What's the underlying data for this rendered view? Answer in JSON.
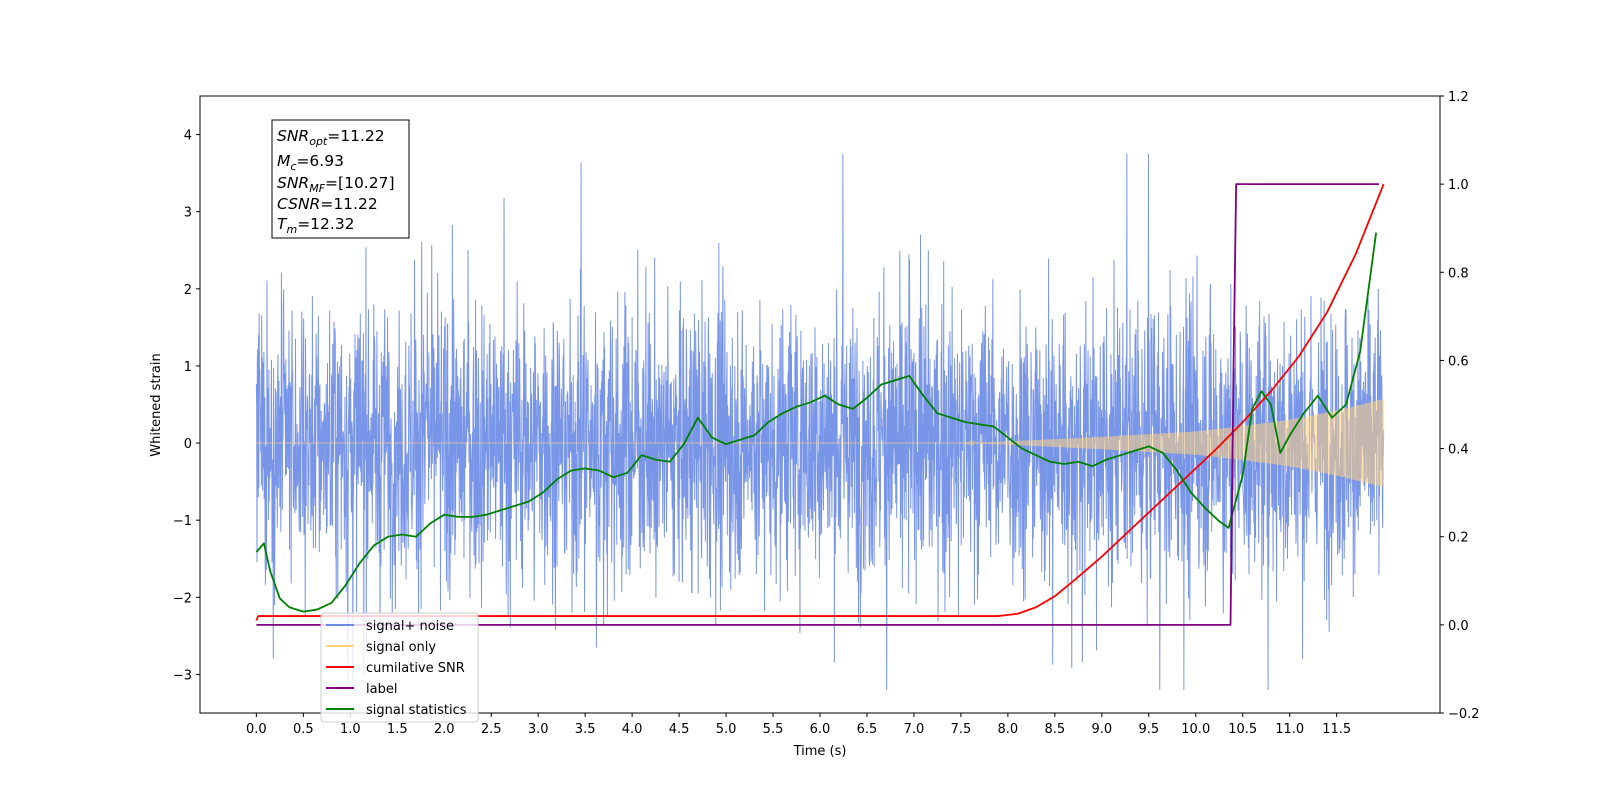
{
  "chart_data": {
    "type": "line",
    "xlabel": "Time (s)",
    "ylabel": "Whitened strain",
    "xlim": [
      -0.6,
      12.6
    ],
    "ylim": [
      -3.5,
      4.5
    ],
    "y2lim": [
      -0.2,
      1.2
    ],
    "x_ticks": [
      "0.0",
      "0.5",
      "1.0",
      "1.5",
      "2.0",
      "2.5",
      "3.0",
      "3.5",
      "4.0",
      "4.5",
      "5.0",
      "5.5",
      "6.0",
      "6.5",
      "7.0",
      "7.5",
      "8.0",
      "8.5",
      "9.0",
      "9.5",
      "10.0",
      "10.5",
      "11.0",
      "11.5"
    ],
    "y_ticks": [
      "−3",
      "−2",
      "−1",
      "0",
      "1",
      "2",
      "3",
      "4"
    ],
    "y2_ticks": [
      "−0.2",
      "0.0",
      "0.2",
      "0.4",
      "0.6",
      "0.8",
      "1.0",
      "1.2"
    ],
    "info_box": {
      "snr_opt": {
        "sym": "SNR",
        "sub": "opt",
        "val": "=11.22"
      },
      "mc": {
        "sym": "M",
        "sub": "c",
        "val": "=6.93"
      },
      "snr_mf": {
        "sym": "SNR",
        "sub": "MF",
        "val": "=[10.27]"
      },
      "csnr": {
        "sym": "CSNR",
        "sub": "",
        "val": "=11.22"
      },
      "tm": {
        "sym": "T",
        "sub": "m",
        "val": "=12.32"
      }
    },
    "legend": {
      "placement": "lower-left",
      "entries": [
        {
          "label": "signal+ noise",
          "color": "#6a8ae6"
        },
        {
          "label": "signal only",
          "color": "#ffd27f"
        },
        {
          "label": "cumilative SNR",
          "color": "#ff0000"
        },
        {
          "label": "label",
          "color": "#800080"
        },
        {
          "label": "signal statistics",
          "color": "#008000"
        }
      ]
    },
    "series": [
      {
        "name": "signal+ noise",
        "axis": "left",
        "color": "#6a8ae6",
        "noise": {
          "t_start": 0.0,
          "t_end": 12.0,
          "band_sigma": 0.9,
          "peak_max": 3.75,
          "peak_min": -3.2
        }
      },
      {
        "name": "signal only",
        "axis": "left",
        "color": "#ffd27f",
        "envelope": {
          "x": [
            0.0,
            7.5,
            8.0,
            9.0,
            10.0,
            10.5,
            11.0,
            11.5,
            12.0
          ],
          "amp": [
            0.0,
            0.0,
            0.02,
            0.08,
            0.15,
            0.22,
            0.3,
            0.42,
            0.57
          ]
        }
      },
      {
        "name": "cumilative SNR",
        "axis": "right",
        "color": "#ff0000",
        "x": [
          0.0,
          0.02,
          7.9,
          8.1,
          8.3,
          8.5,
          8.7,
          9.0,
          9.3,
          9.6,
          9.9,
          10.2,
          10.5,
          10.8,
          11.1,
          11.4,
          11.7,
          12.0
        ],
        "y": [
          0.01,
          0.02,
          0.02,
          0.025,
          0.04,
          0.065,
          0.1,
          0.155,
          0.215,
          0.275,
          0.335,
          0.395,
          0.46,
          0.53,
          0.61,
          0.71,
          0.84,
          1.0
        ]
      },
      {
        "name": "label",
        "axis": "right",
        "color": "#800080",
        "x": [
          0.0,
          10.37,
          10.4,
          10.43,
          11.95
        ],
        "y": [
          0.0,
          0.0,
          0.55,
          1.0,
          1.0
        ]
      },
      {
        "name": "signal statistics",
        "axis": "right",
        "color": "#008000",
        "x": [
          0.0,
          0.08,
          0.15,
          0.25,
          0.35,
          0.5,
          0.65,
          0.8,
          0.95,
          1.1,
          1.25,
          1.4,
          1.55,
          1.7,
          1.85,
          2.0,
          2.15,
          2.3,
          2.45,
          2.6,
          2.75,
          2.9,
          3.05,
          3.2,
          3.35,
          3.5,
          3.65,
          3.8,
          3.95,
          4.1,
          4.25,
          4.4,
          4.55,
          4.7,
          4.85,
          5.0,
          5.15,
          5.3,
          5.45,
          5.6,
          5.75,
          5.9,
          6.05,
          6.2,
          6.35,
          6.5,
          6.65,
          6.8,
          6.95,
          7.1,
          7.25,
          7.4,
          7.55,
          7.7,
          7.85,
          8.0,
          8.15,
          8.3,
          8.45,
          8.6,
          8.75,
          8.9,
          9.05,
          9.2,
          9.35,
          9.5,
          9.65,
          9.8,
          9.95,
          10.1,
          10.25,
          10.35,
          10.5,
          10.6,
          10.7,
          10.8,
          10.9,
          11.0,
          11.15,
          11.3,
          11.45,
          11.6,
          11.75,
          11.92
        ],
        "y": [
          0.165,
          0.185,
          0.12,
          0.06,
          0.04,
          0.03,
          0.035,
          0.05,
          0.09,
          0.14,
          0.18,
          0.2,
          0.205,
          0.2,
          0.23,
          0.25,
          0.245,
          0.245,
          0.25,
          0.26,
          0.27,
          0.28,
          0.3,
          0.33,
          0.35,
          0.355,
          0.35,
          0.335,
          0.345,
          0.385,
          0.375,
          0.37,
          0.41,
          0.47,
          0.425,
          0.41,
          0.42,
          0.43,
          0.46,
          0.48,
          0.495,
          0.505,
          0.52,
          0.5,
          0.49,
          0.515,
          0.545,
          0.555,
          0.565,
          0.52,
          0.48,
          0.47,
          0.46,
          0.455,
          0.45,
          0.425,
          0.4,
          0.385,
          0.37,
          0.365,
          0.37,
          0.36,
          0.375,
          0.385,
          0.395,
          0.405,
          0.39,
          0.35,
          0.3,
          0.265,
          0.235,
          0.22,
          0.34,
          0.49,
          0.53,
          0.5,
          0.39,
          0.43,
          0.48,
          0.52,
          0.47,
          0.5,
          0.62,
          0.89
        ]
      }
    ]
  }
}
